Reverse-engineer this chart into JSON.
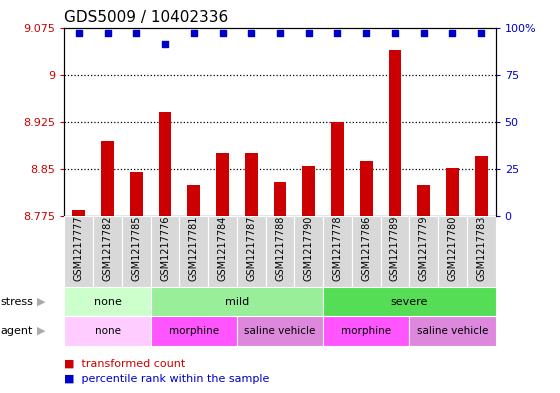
{
  "title": "GDS5009 / 10402336",
  "samples": [
    "GSM1217777",
    "GSM1217782",
    "GSM1217785",
    "GSM1217776",
    "GSM1217781",
    "GSM1217784",
    "GSM1217787",
    "GSM1217788",
    "GSM1217790",
    "GSM1217778",
    "GSM1217786",
    "GSM1217789",
    "GSM1217779",
    "GSM1217780",
    "GSM1217783"
  ],
  "transformed_counts": [
    8.785,
    8.895,
    8.845,
    8.94,
    8.825,
    8.875,
    8.875,
    8.83,
    8.855,
    8.925,
    8.862,
    9.04,
    8.825,
    8.852,
    8.87
  ],
  "percentile_ranks": [
    97,
    97,
    97,
    91,
    97,
    97,
    97,
    97,
    97,
    97,
    97,
    97,
    97,
    97,
    97
  ],
  "ymin": 8.775,
  "ymax": 9.075,
  "yticks": [
    8.775,
    8.85,
    8.925,
    9.0,
    9.075
  ],
  "ytick_labels": [
    "8.775",
    "8.85",
    "8.925",
    "9",
    "9.075"
  ],
  "right_yticks_pct": [
    0,
    25,
    50,
    75,
    100
  ],
  "right_ytick_labels": [
    "0",
    "25",
    "50",
    "75",
    "100%"
  ],
  "bar_color": "#cc0000",
  "dot_color": "#0000cc",
  "bar_baseline": 8.775,
  "plot_bg": "#ffffff",
  "sample_box_bg": "#d8d8d8",
  "stress_groups": [
    {
      "label": "none",
      "start": 0,
      "end": 3,
      "color": "#ccffcc"
    },
    {
      "label": "mild",
      "start": 3,
      "end": 9,
      "color": "#99ee99"
    },
    {
      "label": "severe",
      "start": 9,
      "end": 15,
      "color": "#55dd55"
    }
  ],
  "agent_groups": [
    {
      "label": "none",
      "start": 0,
      "end": 3,
      "color": "#ffccff"
    },
    {
      "label": "morphine",
      "start": 3,
      "end": 6,
      "color": "#ff55ff"
    },
    {
      "label": "saline vehicle",
      "start": 6,
      "end": 9,
      "color": "#dd88dd"
    },
    {
      "label": "morphine",
      "start": 9,
      "end": 12,
      "color": "#ff55ff"
    },
    {
      "label": "saline vehicle",
      "start": 12,
      "end": 15,
      "color": "#dd88dd"
    }
  ],
  "bg_color": "#ffffff",
  "axis_color_left": "#cc0000",
  "axis_color_right": "#0000cc",
  "title_fontsize": 11,
  "tick_fontsize": 8,
  "sample_fontsize": 7,
  "legend_fontsize": 8,
  "row_label_fontsize": 8,
  "dotted_lines": [
    8.85,
    8.925,
    9.0
  ]
}
